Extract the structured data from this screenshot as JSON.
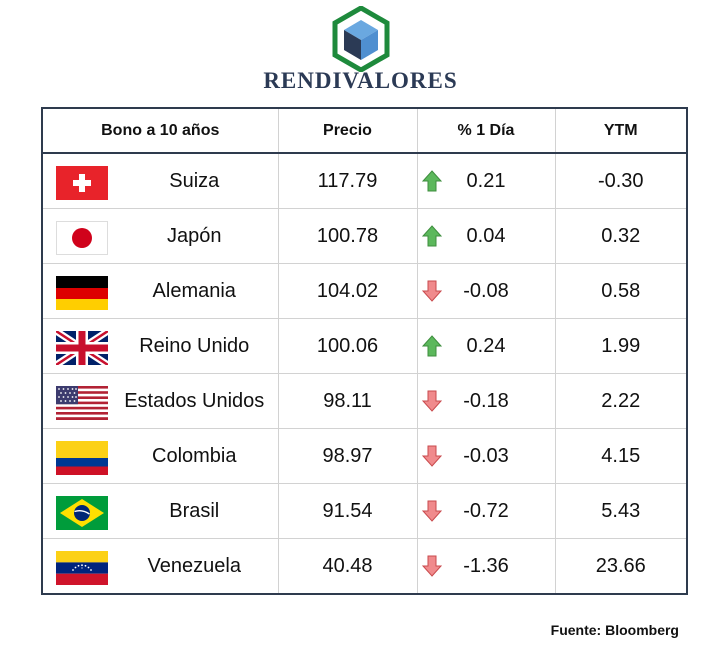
{
  "brand": {
    "name": "RENDIVALORES",
    "logo_icon": "isometric-cube-hexagon-icon",
    "colors": {
      "green": "#1e8a3c",
      "navy": "#2b3a55",
      "blue": "#4f8fd0"
    }
  },
  "table": {
    "headers": [
      "Bono a 10 años",
      "Precio",
      "% 1 Día",
      "YTM"
    ],
    "rows": [
      {
        "flag": "switzerland-flag-icon",
        "country": "Suiza",
        "price": "117.79",
        "direction": "up",
        "change": "0.21",
        "ytm": "-0.30"
      },
      {
        "flag": "japan-flag-icon",
        "country": "Japón",
        "price": "100.78",
        "direction": "up",
        "change": "0.04",
        "ytm": "0.32"
      },
      {
        "flag": "germany-flag-icon",
        "country": "Alemania",
        "price": "104.02",
        "direction": "down",
        "change": "-0.08",
        "ytm": "0.58"
      },
      {
        "flag": "united-kingdom-flag-icon",
        "country": "Reino Unido",
        "price": "100.06",
        "direction": "up",
        "change": "0.24",
        "ytm": "1.99"
      },
      {
        "flag": "united-states-flag-icon",
        "country": "Estados Unidos",
        "price": "98.11",
        "direction": "down",
        "change": "-0.18",
        "ytm": "2.22"
      },
      {
        "flag": "colombia-flag-icon",
        "country": "Colombia",
        "price": "98.97",
        "direction": "down",
        "change": "-0.03",
        "ytm": "4.15"
      },
      {
        "flag": "brazil-flag-icon",
        "country": "Brasil",
        "price": "91.54",
        "direction": "down",
        "change": "-0.72",
        "ytm": "5.43"
      },
      {
        "flag": "venezuela-flag-icon",
        "country": "Venezuela",
        "price": "40.48",
        "direction": "down",
        "change": "-1.36",
        "ytm": "23.66"
      }
    ],
    "arrow_colors": {
      "up": "#5cb85c",
      "down": "#e8676b"
    }
  },
  "footer": {
    "source": "Fuente: Bloomberg"
  }
}
